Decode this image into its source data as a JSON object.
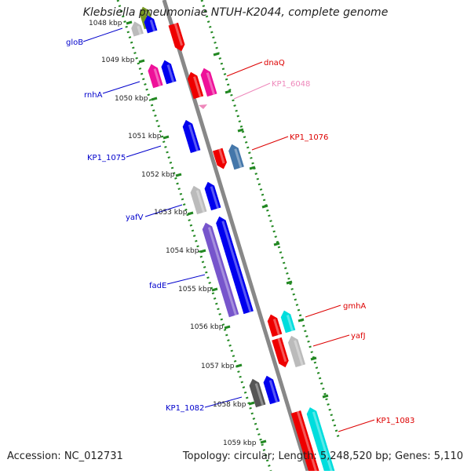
{
  "title": "Klebsiella pneumoniae NTUH-K2044, complete genome",
  "footer": {
    "accession": "Accession: NC_012731",
    "summary": "Topology: circular; Length: 5,248,520 bp; Genes: 5,110"
  },
  "ruler": {
    "labels": [
      "1048 kbp",
      "1049 kbp",
      "1050 kbp",
      "1051 kbp",
      "1052 kbp",
      "1053 kbp",
      "1054 kbp",
      "1055 kbp",
      "1056 kbp",
      "1057 kbp",
      "1058 kbp",
      "1059 kbp"
    ]
  },
  "gene_labels": {
    "left": [
      "gloB",
      "rnhA",
      "KP1_1075",
      "yafV",
      "fadE",
      "KP1_1082"
    ],
    "right": [
      "dnaQ",
      "KP1_6048",
      "KP1_1076",
      "gmhA",
      "yafJ",
      "KP1_1083"
    ]
  },
  "colors": {
    "left_label": "#0000cc",
    "right_label": "#dd0000",
    "pink_label": "#ee88bb",
    "axis": "#888888",
    "dotted_guide": "#228822",
    "red_gene": "#ee0000",
    "blue_gene": "#0000ee",
    "magenta_gene": "#ee1199",
    "grey_gene": "#bbbbbb",
    "cyan_gene": "#00dddd",
    "steelblue_gene": "#4477aa",
    "purple_gene": "#7755cc",
    "darkgrey_gene": "#555555",
    "olive_gene": "#779922"
  }
}
